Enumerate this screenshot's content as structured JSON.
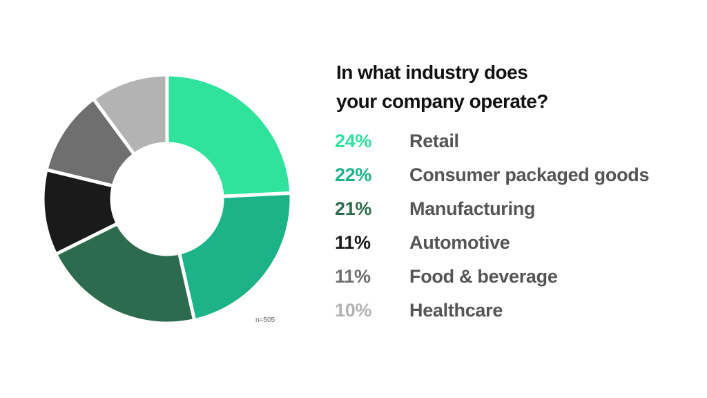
{
  "chart_data": {
    "type": "pie",
    "donut": true,
    "title": "In what industry does your company operate?",
    "categories": [
      "Retail",
      "Consumer packaged goods",
      "Manufacturing",
      "Automotive",
      "Food & beverage",
      "Healthcare"
    ],
    "values": [
      24,
      22,
      21,
      11,
      11,
      10
    ],
    "value_labels": [
      "24%",
      "22%",
      "21%",
      "11%",
      "11%",
      "10%"
    ],
    "colors": [
      "#2fe39c",
      "#1bb387",
      "#2c6b4d",
      "#1a1a1a",
      "#6f6f6f",
      "#b3b3b3"
    ],
    "note": "n=505"
  }
}
